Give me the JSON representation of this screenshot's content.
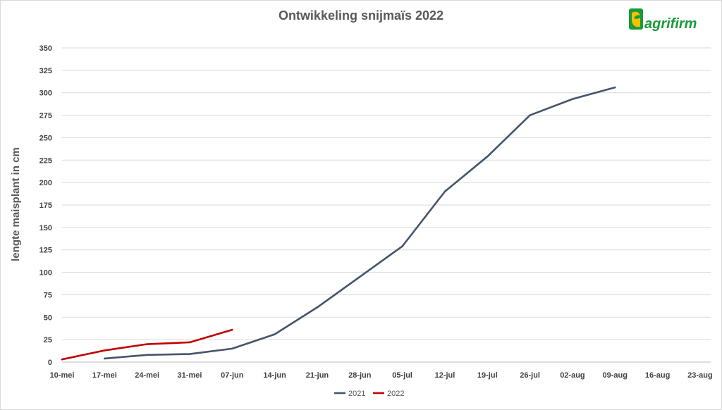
{
  "logo": {
    "text": "agrifirm",
    "colors": {
      "green": "#1a9a3a",
      "yellow": "#f2c200"
    }
  },
  "colors": {
    "series_2021": "#44546a",
    "series_2022": "#c00000",
    "grid": "#d9d9d9",
    "text": "#595959"
  },
  "chart_data": {
    "type": "line",
    "title": "Ontwikkeling snijmaïs 2022",
    "xlabel": "",
    "ylabel": "lengte maisplant in cm",
    "ylim": [
      0,
      350
    ],
    "yticks": [
      0,
      25,
      50,
      75,
      100,
      125,
      150,
      175,
      200,
      225,
      250,
      275,
      300,
      325,
      350
    ],
    "categories": [
      "10-mei",
      "17-mei",
      "24-mei",
      "31-mei",
      "07-jun",
      "14-jun",
      "21-jun",
      "28-jun",
      "05-jul",
      "12-jul",
      "19-jul",
      "26-jul",
      "02-aug",
      "09-aug",
      "16-aug",
      "23-aug"
    ],
    "grid": true,
    "legend": "bottom",
    "series": [
      {
        "name": "2021",
        "color": "#44546a",
        "values": [
          null,
          4,
          8,
          9,
          15,
          31,
          61,
          95,
          129,
          190,
          229,
          275,
          293,
          306,
          null,
          null
        ]
      },
      {
        "name": "2022",
        "color": "#c00000",
        "values": [
          3,
          13,
          20,
          22,
          36,
          null,
          null,
          null,
          null,
          null,
          null,
          null,
          null,
          null,
          null,
          null
        ]
      }
    ]
  }
}
